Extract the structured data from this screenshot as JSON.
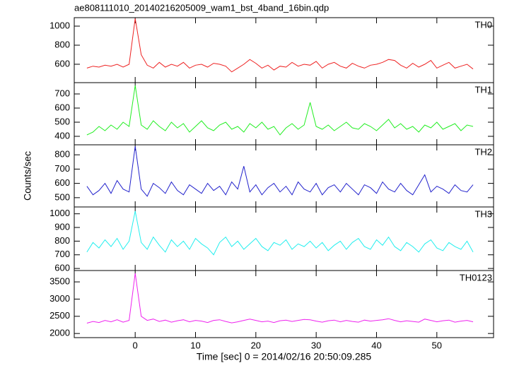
{
  "chart_data": [
    {
      "type": "line",
      "title": "ae808111010_20140216205009_wam1_bst_4band_16bin.qdp",
      "x": [
        -8,
        -7,
        -6,
        -5,
        -4,
        -3,
        -2,
        -1,
        0,
        1,
        2,
        3,
        4,
        5,
        6,
        7,
        8,
        9,
        10,
        11,
        12,
        13,
        14,
        15,
        16,
        17,
        18,
        19,
        20,
        21,
        22,
        23,
        24,
        25,
        26,
        27,
        28,
        29,
        30,
        31,
        32,
        33,
        34,
        35,
        36,
        37,
        38,
        39,
        40,
        41,
        42,
        43,
        44,
        45,
        46,
        47,
        48,
        49,
        50,
        51,
        52,
        53,
        54,
        55,
        56
      ],
      "series": [
        {
          "name": "TH0",
          "color": "#ee2222",
          "values": [
            560,
            580,
            570,
            590,
            580,
            600,
            570,
            600,
            1080,
            700,
            590,
            560,
            620,
            570,
            600,
            580,
            620,
            560,
            590,
            600,
            570,
            610,
            600,
            580,
            520,
            560,
            600,
            650,
            610,
            560,
            590,
            540,
            580,
            570,
            620,
            580,
            600,
            590,
            630,
            560,
            600,
            620,
            580,
            560,
            610,
            580,
            560,
            590,
            600,
            620,
            650,
            640,
            590,
            560,
            610,
            570,
            600,
            640,
            560,
            590,
            620,
            560,
            580,
            600,
            550
          ]
        }
      ],
      "xlim": [
        -10.1,
        59.4
      ],
      "xticks": [
        0,
        10,
        20,
        30,
        40,
        50
      ],
      "ylim": [
        407,
        1089
      ],
      "yticks": [
        600,
        800,
        1000
      ]
    },
    {
      "type": "line",
      "x": [
        -8,
        -7,
        -6,
        -5,
        -4,
        -3,
        -2,
        -1,
        0,
        1,
        2,
        3,
        4,
        5,
        6,
        7,
        8,
        9,
        10,
        11,
        12,
        13,
        14,
        15,
        16,
        17,
        18,
        19,
        20,
        21,
        22,
        23,
        24,
        25,
        26,
        27,
        28,
        29,
        30,
        31,
        32,
        33,
        34,
        35,
        36,
        37,
        38,
        39,
        40,
        41,
        42,
        43,
        44,
        45,
        46,
        47,
        48,
        49,
        50,
        51,
        52,
        53,
        54,
        55,
        56
      ],
      "series": [
        {
          "name": "TH1",
          "color": "#22ee22",
          "values": [
            410,
            430,
            470,
            440,
            480,
            450,
            500,
            470,
            760,
            480,
            450,
            510,
            470,
            440,
            500,
            460,
            490,
            430,
            470,
            510,
            460,
            440,
            480,
            500,
            450,
            470,
            430,
            490,
            460,
            500,
            450,
            470,
            410,
            460,
            490,
            450,
            480,
            640,
            470,
            450,
            480,
            440,
            470,
            500,
            460,
            450,
            490,
            470,
            440,
            480,
            520,
            460,
            490,
            450,
            470,
            430,
            480,
            460,
            500,
            450,
            470,
            490,
            440,
            480,
            470
          ]
        }
      ],
      "xlim": [
        -10.1,
        59.4
      ],
      "xticks": [
        0,
        10,
        20,
        30,
        40,
        50
      ],
      "ylim": [
        340,
        780
      ],
      "yticks": [
        400,
        500,
        600,
        700
      ]
    },
    {
      "type": "line",
      "y_label": "Counts/sec",
      "x": [
        -8,
        -7,
        -6,
        -5,
        -4,
        -3,
        -2,
        -1,
        0,
        1,
        2,
        3,
        4,
        5,
        6,
        7,
        8,
        9,
        10,
        11,
        12,
        13,
        14,
        15,
        16,
        17,
        18,
        19,
        20,
        21,
        22,
        23,
        24,
        25,
        26,
        27,
        28,
        29,
        30,
        31,
        32,
        33,
        34,
        35,
        36,
        37,
        38,
        39,
        40,
        41,
        42,
        43,
        44,
        45,
        46,
        47,
        48,
        49,
        50,
        51,
        52,
        53,
        54,
        55,
        56
      ],
      "series": [
        {
          "name": "TH2",
          "color": "#2222cc",
          "values": [
            580,
            520,
            550,
            600,
            530,
            620,
            560,
            540,
            860,
            560,
            510,
            600,
            570,
            530,
            610,
            550,
            520,
            590,
            560,
            530,
            600,
            550,
            580,
            520,
            610,
            560,
            720,
            540,
            590,
            520,
            570,
            600,
            540,
            580,
            520,
            610,
            560,
            540,
            600,
            520,
            570,
            590,
            540,
            600,
            560,
            520,
            590,
            570,
            530,
            610,
            560,
            540,
            600,
            550,
            520,
            590,
            660,
            540,
            580,
            560,
            530,
            590,
            550,
            540,
            590
          ]
        }
      ],
      "xlim": [
        -10.1,
        59.4
      ],
      "xticks": [
        0,
        10,
        20,
        30,
        40,
        50
      ],
      "ylim": [
        435,
        870
      ],
      "yticks": [
        500,
        600,
        700,
        800
      ]
    },
    {
      "type": "line",
      "x": [
        -8,
        -7,
        -6,
        -5,
        -4,
        -3,
        -2,
        -1,
        0,
        1,
        2,
        3,
        4,
        5,
        6,
        7,
        8,
        9,
        10,
        11,
        12,
        13,
        14,
        15,
        16,
        17,
        18,
        19,
        20,
        21,
        22,
        23,
        24,
        25,
        26,
        27,
        28,
        29,
        30,
        31,
        32,
        33,
        34,
        35,
        36,
        37,
        38,
        39,
        40,
        41,
        42,
        43,
        44,
        45,
        46,
        47,
        48,
        49,
        50,
        51,
        52,
        53,
        54,
        55,
        56
      ],
      "series": [
        {
          "name": "TH3",
          "color": "#22eeee",
          "values": [
            720,
            790,
            750,
            810,
            760,
            820,
            740,
            800,
            1020,
            790,
            740,
            830,
            770,
            720,
            810,
            760,
            800,
            740,
            820,
            780,
            750,
            700,
            790,
            830,
            760,
            800,
            740,
            780,
            820,
            760,
            730,
            790,
            770,
            810,
            740,
            780,
            760,
            800,
            750,
            790,
            730,
            770,
            800,
            740,
            790,
            820,
            760,
            740,
            810,
            770,
            830,
            760,
            730,
            790,
            760,
            720,
            780,
            810,
            750,
            730,
            790,
            760,
            740,
            800,
            720
          ]
        }
      ],
      "xlim": [
        -10.1,
        59.4
      ],
      "xticks": [
        0,
        10,
        20,
        30,
        40,
        50
      ],
      "ylim": [
        585,
        1050
      ],
      "yticks": [
        600,
        700,
        800,
        900,
        1000
      ]
    },
    {
      "type": "line",
      "x_label": "Time [sec] 0 = 2014/02/16 20:50:09.285",
      "x": [
        -8,
        -7,
        -6,
        -5,
        -4,
        -3,
        -2,
        -1,
        0,
        1,
        2,
        3,
        4,
        5,
        6,
        7,
        8,
        9,
        10,
        11,
        12,
        13,
        14,
        15,
        16,
        17,
        18,
        19,
        20,
        21,
        22,
        23,
        24,
        25,
        26,
        27,
        28,
        29,
        30,
        31,
        32,
        33,
        34,
        35,
        36,
        37,
        38,
        39,
        40,
        41,
        42,
        43,
        44,
        45,
        46,
        47,
        48,
        49,
        50,
        51,
        52,
        53,
        54,
        55,
        56
      ],
      "series": [
        {
          "name": "TH0123",
          "color": "#ee22ee",
          "values": [
            2300,
            2350,
            2320,
            2380,
            2340,
            2400,
            2330,
            2380,
            3750,
            2500,
            2380,
            2420,
            2350,
            2390,
            2330,
            2370,
            2400,
            2340,
            2380,
            2360,
            2320,
            2380,
            2400,
            2350,
            2310,
            2340,
            2380,
            2420,
            2380,
            2340,
            2360,
            2320,
            2370,
            2390,
            2350,
            2380,
            2410,
            2400,
            2360,
            2330,
            2370,
            2390,
            2340,
            2380,
            2350,
            2330,
            2390,
            2360,
            2380,
            2400,
            2430,
            2380,
            2340,
            2370,
            2350,
            2330,
            2420,
            2380,
            2340,
            2370,
            2390,
            2330,
            2360,
            2380,
            2340
          ]
        }
      ],
      "xlim": [
        -10.1,
        59.4
      ],
      "xticks": [
        0,
        10,
        20,
        30,
        40,
        50
      ],
      "ylim": [
        1880,
        3830
      ],
      "yticks": [
        2000,
        2500,
        3000,
        3500
      ]
    }
  ]
}
